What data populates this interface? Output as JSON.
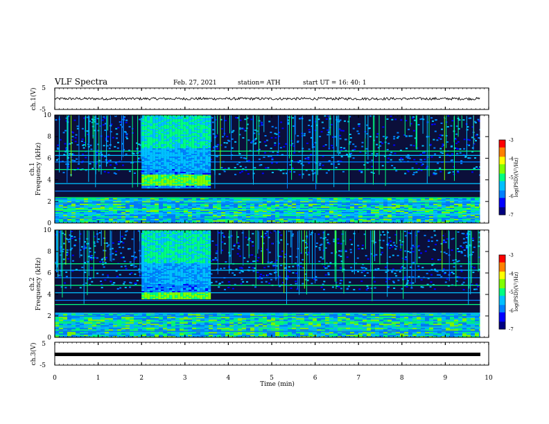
{
  "header": {
    "title": "VLF Spectra",
    "date": "Feb. 27, 2021",
    "station": "station= ATH",
    "start": "start  UT  =   16: 40: 1"
  },
  "colors": {
    "bg_dark": "#0b0f3a",
    "colormap": [
      "#000080",
      "#0000ff",
      "#0080ff",
      "#00c0ff",
      "#00ff80",
      "#80ff00",
      "#ffff00",
      "#ff8000",
      "#ff0000",
      "#ffffff"
    ]
  },
  "chart_data": [
    {
      "type": "line",
      "ylabel": "ch.1(V)",
      "yticks": [
        "5",
        "-5"
      ],
      "ylim": [
        -5,
        5
      ],
      "description_values": {
        "mean": 0,
        "noise_amplitude": 0.6
      },
      "xlim": [
        0,
        10
      ]
    },
    {
      "type": "heatmap",
      "ylabel_top": "ch.1",
      "ylabel": "Frequency (kHz)",
      "yticks": [
        "0",
        "2",
        "4",
        "6",
        "8",
        "10"
      ],
      "ylim": [
        0,
        10
      ],
      "xlim": [
        0,
        10
      ],
      "data_end_min": 9.8,
      "burst": {
        "x_start": 2.0,
        "x_end": 3.55,
        "low_edge_khz": 3.3,
        "strong_band_khz": [
          3.5,
          4.5
        ]
      },
      "lines_khz": [
        0.5,
        0.9,
        1.3,
        1.9,
        2.1,
        2.4,
        3.0,
        3.7,
        5.0,
        5.7,
        6.3,
        6.7
      ],
      "colorbar": {
        "label": "log(PSD)(V²/Hz)",
        "ticks": [
          "-3",
          "-4",
          "-5",
          "-6",
          "-7"
        ],
        "range": [
          -7,
          -3
        ]
      }
    },
    {
      "type": "heatmap",
      "ylabel_top": "ch.2",
      "ylabel": "Frequency (kHz)",
      "yticks": [
        "0",
        "2",
        "4",
        "6",
        "8",
        "10"
      ],
      "ylim": [
        0,
        10
      ],
      "xlim": [
        0,
        10
      ],
      "data_end_min": 9.8,
      "burst": {
        "x_start": 2.0,
        "x_end": 3.55,
        "low_edge_khz": 3.6,
        "strong_band_khz": [
          3.6,
          4.3
        ]
      },
      "lines_khz": [
        0.6,
        1.0,
        1.5,
        2.0,
        2.3,
        3.1,
        3.5,
        4.2,
        4.9,
        5.6,
        6.3,
        6.9
      ],
      "colorbar": {
        "label": "log(PSD)(V²/Hz)",
        "ticks": [
          "-3",
          "-4",
          "-5",
          "-6",
          "-7"
        ],
        "range": [
          -7,
          -3
        ]
      }
    },
    {
      "type": "line",
      "ylabel": "ch.3(V)",
      "yticks": [
        "5",
        "-5"
      ],
      "ylim": [
        -5,
        5
      ],
      "constant_value": 0,
      "xlim": [
        0,
        10
      ]
    }
  ],
  "xaxis": {
    "label": "Time  (min)",
    "ticks": [
      "0",
      "1",
      "2",
      "3",
      "4",
      "5",
      "6",
      "7",
      "8",
      "9",
      "10"
    ]
  }
}
